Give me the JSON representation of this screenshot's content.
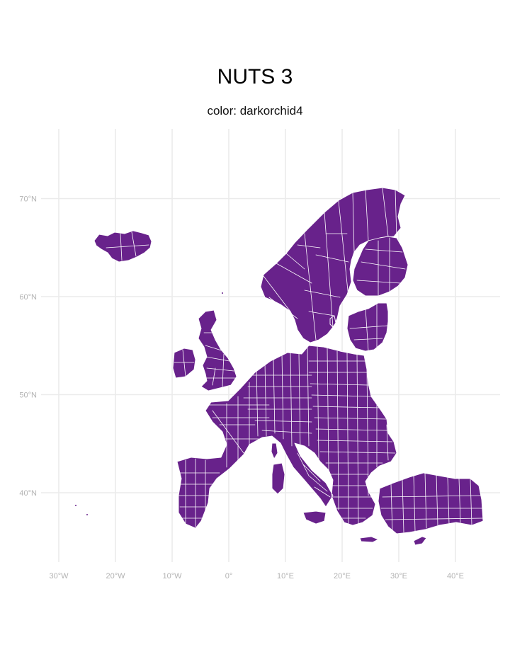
{
  "map": {
    "title": "NUTS 3",
    "subtitle": "color: darkorchid4",
    "fill_color": "#68228B",
    "border_color": "#ffffff",
    "lat_ticks": [
      {
        "value": 40,
        "label": "40°N"
      },
      {
        "value": 50,
        "label": "50°N"
      },
      {
        "value": 60,
        "label": "60°N"
      },
      {
        "value": 70,
        "label": "70°N"
      }
    ],
    "lon_ticks": [
      {
        "value": -30,
        "label": "30°W"
      },
      {
        "value": -20,
        "label": "20°W"
      },
      {
        "value": -10,
        "label": "10°W"
      },
      {
        "value": 0,
        "label": "0°"
      },
      {
        "value": 10,
        "label": "10°E"
      },
      {
        "value": 20,
        "label": "20°E"
      },
      {
        "value": 30,
        "label": "30°E"
      },
      {
        "value": 40,
        "label": "40°E"
      }
    ],
    "lon_range": [
      -31,
      46
    ],
    "lat_range": [
      33,
      77
    ]
  }
}
